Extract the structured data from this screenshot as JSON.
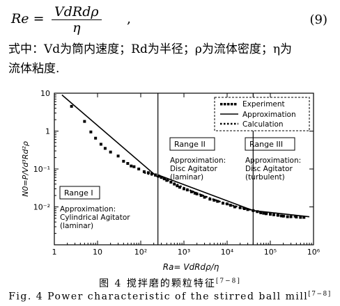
{
  "equation": {
    "lhs": "Re =",
    "numerator": "VdRdρ",
    "denominator": "η",
    "trailing": ",",
    "number": "(9)"
  },
  "description": {
    "line1": "式中：Vd为筒内速度；Rd为半径；ρ为流体密度；η为",
    "line2": "流体粘度."
  },
  "chart_data": {
    "type": "scatter",
    "xlabel": "Ra= VdRdρ/η",
    "ylabel": "N0=P/Vd³Rd²ρ",
    "xscale": "log",
    "yscale": "log",
    "xlim": [
      1,
      1000000
    ],
    "ylim": [
      0.001,
      10
    ],
    "x_ticks": [
      "1",
      "10",
      "10²",
      "10³",
      "10⁴",
      "10⁵",
      "10⁶"
    ],
    "y_ticks": [
      "10",
      "1",
      "10⁻¹",
      "10⁻²"
    ],
    "legend": {
      "placement": "top-right",
      "entries": [
        "Experiment",
        "Approximation",
        "Calculation"
      ]
    },
    "ranges": [
      {
        "title": "Range I",
        "text": [
          "Approximation:",
          "Cylindrical Agitator",
          "(laminar)"
        ],
        "boundary_x": 250
      },
      {
        "title": "Range II",
        "text": [
          "Approximation:",
          "Disc Agitator",
          "(laminar)"
        ],
        "boundary_x": 40000
      },
      {
        "title": "Range III",
        "text": [
          "Approximation:",
          "Disc Agitator",
          "(turbulent)"
        ]
      }
    ],
    "series": [
      {
        "name": "Experiment",
        "points": [
          [
            2.5,
            4.5
          ],
          [
            5,
            1.8
          ],
          [
            7,
            0.95
          ],
          [
            9,
            0.65
          ],
          [
            12,
            0.45
          ],
          [
            15,
            0.35
          ],
          [
            20,
            0.28
          ],
          [
            30,
            0.22
          ],
          [
            40,
            0.16
          ],
          [
            50,
            0.14
          ],
          [
            60,
            0.12
          ],
          [
            70,
            0.115
          ],
          [
            90,
            0.1
          ],
          [
            120,
            0.085
          ],
          [
            150,
            0.08
          ],
          [
            180,
            0.075
          ],
          [
            220,
            0.07
          ],
          [
            260,
            0.065
          ],
          [
            300,
            0.06
          ],
          [
            350,
            0.055
          ],
          [
            400,
            0.05
          ],
          [
            500,
            0.045
          ],
          [
            600,
            0.04
          ],
          [
            700,
            0.036
          ],
          [
            800,
            0.033
          ],
          [
            1000,
            0.03
          ],
          [
            1200,
            0.028
          ],
          [
            1500,
            0.025
          ],
          [
            1800,
            0.023
          ],
          [
            2000,
            0.022
          ],
          [
            2500,
            0.02
          ],
          [
            3000,
            0.018
          ],
          [
            4000,
            0.016
          ],
          [
            5000,
            0.015
          ],
          [
            6000,
            0.014
          ],
          [
            8000,
            0.0125
          ],
          [
            10000,
            0.012
          ],
          [
            12000,
            0.011
          ],
          [
            15000,
            0.01
          ],
          [
            20000,
            0.0095
          ],
          [
            25000,
            0.009
          ],
          [
            30000,
            0.0085
          ],
          [
            40000,
            0.008
          ],
          [
            50000,
            0.0075
          ],
          [
            60000,
            0.007
          ],
          [
            70000,
            0.0068
          ],
          [
            80000,
            0.0066
          ],
          [
            100000,
            0.0064
          ],
          [
            120000,
            0.0062
          ],
          [
            150000,
            0.006
          ],
          [
            180000,
            0.0058
          ],
          [
            200000,
            0.0057
          ],
          [
            250000,
            0.0055
          ],
          [
            300000,
            0.0055
          ],
          [
            400000,
            0.0054
          ],
          [
            500000,
            0.0053
          ],
          [
            600000,
            0.0053
          ]
        ]
      },
      {
        "name": "Approximation",
        "segments": [
          [
            [
              1.5,
              9
            ],
            [
              250,
              0.06
            ]
          ],
          [
            [
              250,
              0.07
            ],
            [
              40000,
              0.008
            ]
          ],
          [
            [
              40000,
              0.008
            ],
            [
              800000,
              0.0055
            ]
          ]
        ]
      },
      {
        "name": "Calculation",
        "points": [
          [
            120,
            0.08
          ],
          [
            180,
            0.07
          ],
          [
            260,
            0.062
          ],
          [
            400,
            0.052
          ],
          [
            600,
            0.042
          ],
          [
            1000,
            0.032
          ],
          [
            2000,
            0.023
          ],
          [
            4000,
            0.017
          ],
          [
            8000,
            0.013
          ],
          [
            15000,
            0.0105
          ],
          [
            30000,
            0.0088
          ],
          [
            60000,
            0.0072
          ],
          [
            100000,
            0.0065
          ],
          [
            200000,
            0.0058
          ],
          [
            400000,
            0.0055
          ]
        ]
      }
    ]
  },
  "caption": {
    "cn": "图 4   搅拌磨的颗粒特征",
    "cn_ref": "[7−8]",
    "en": "Fig. 4   Power characteristic of the stirred ball mill",
    "en_ref": "[7−8]"
  }
}
